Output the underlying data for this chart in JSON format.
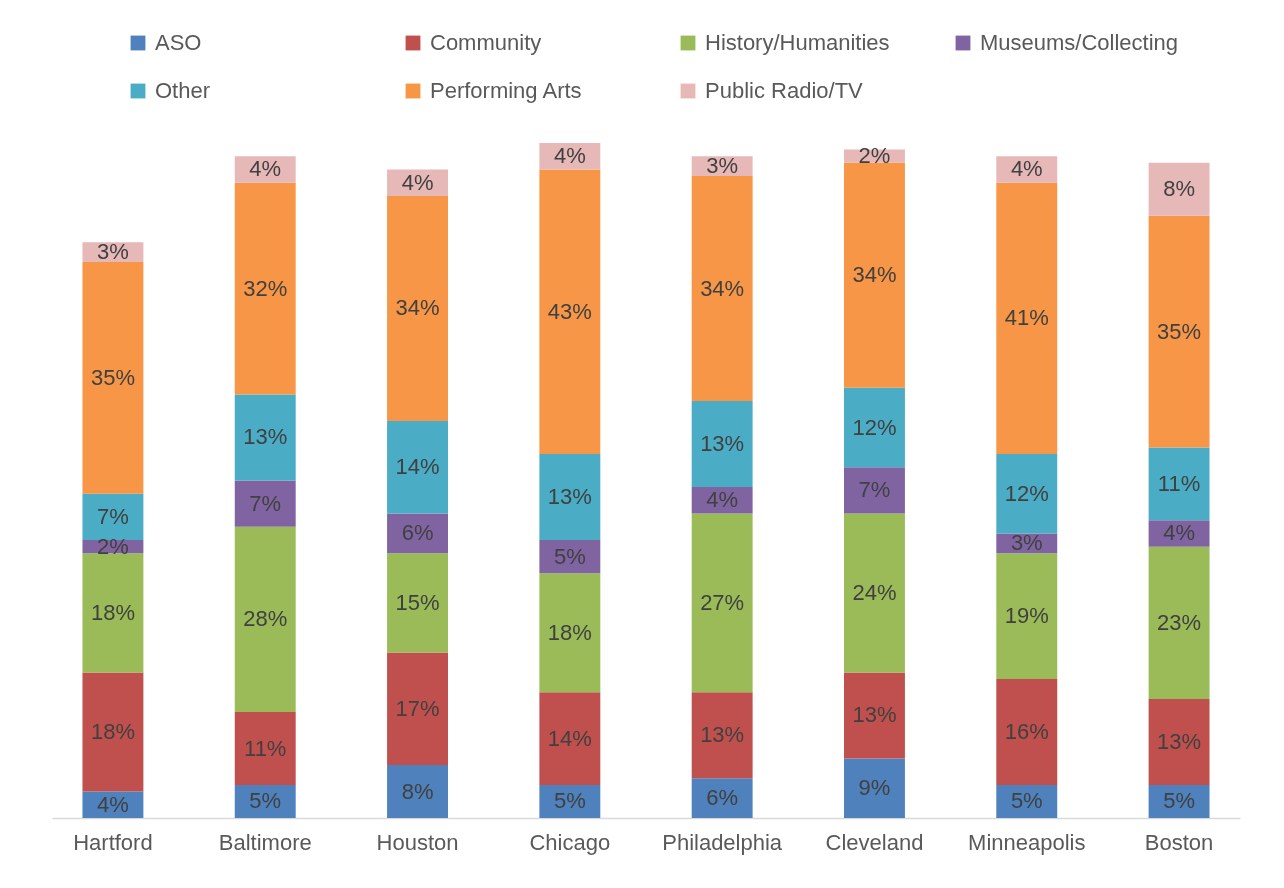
{
  "chart_data": {
    "type": "bar",
    "stacked": true,
    "legend": "top",
    "tick_labels": "x",
    "grid": false,
    "categories": [
      "Hartford",
      "Baltimore",
      "Houston",
      "Chicago",
      "Philadelphia",
      "Cleveland",
      "Minneapolis",
      "Boston"
    ],
    "series": [
      {
        "name": "ASO",
        "color": "#4f81bd",
        "values": [
          4,
          5,
          8,
          5,
          6,
          9,
          5,
          5
        ],
        "value_labels": [
          "4%",
          "5%",
          "8%",
          "5%",
          "6%",
          "9%",
          "5%",
          "5%"
        ]
      },
      {
        "name": "Community",
        "color": "#c0504d",
        "values": [
          18,
          11,
          17,
          14,
          13,
          13,
          16,
          13
        ],
        "value_labels": [
          "18%",
          "11%",
          "17%",
          "14%",
          "13%",
          "13%",
          "16%",
          "13%"
        ]
      },
      {
        "name": "History/Humanities",
        "color": "#9bbb59",
        "values": [
          18,
          28,
          15,
          18,
          27,
          24,
          19,
          23
        ],
        "value_labels": [
          "18%",
          "28%",
          "15%",
          "18%",
          "27%",
          "24%",
          "19%",
          "23%"
        ]
      },
      {
        "name": "Museums/Collecting",
        "color": "#8064a2",
        "values": [
          2,
          7,
          6,
          5,
          4,
          7,
          3,
          4
        ],
        "value_labels": [
          "2%",
          "7%",
          "6%",
          "5%",
          "4%",
          "7%",
          "3%",
          "4%"
        ]
      },
      {
        "name": "Other",
        "color": "#4bacc6",
        "values": [
          7,
          13,
          14,
          13,
          13,
          12,
          12,
          11
        ],
        "value_labels": [
          "7%",
          "13%",
          "14%",
          "13%",
          "13%",
          "12%",
          "12%",
          "11%"
        ]
      },
      {
        "name": "Performing Arts",
        "color": "#f79646",
        "values": [
          35,
          32,
          34,
          43,
          34,
          34,
          41,
          35
        ],
        "value_labels": [
          "35%",
          "32%",
          "34%",
          "43%",
          "34%",
          "34%",
          "41%",
          "35%"
        ]
      },
      {
        "name": "Public Radio/TV",
        "color": "#e6b9b8",
        "values": [
          3,
          4,
          4,
          4,
          3,
          2,
          4,
          8
        ],
        "value_labels": [
          "3%",
          "4%",
          "4%",
          "4%",
          "3%",
          "2%",
          "4%",
          "8%"
        ]
      }
    ]
  }
}
